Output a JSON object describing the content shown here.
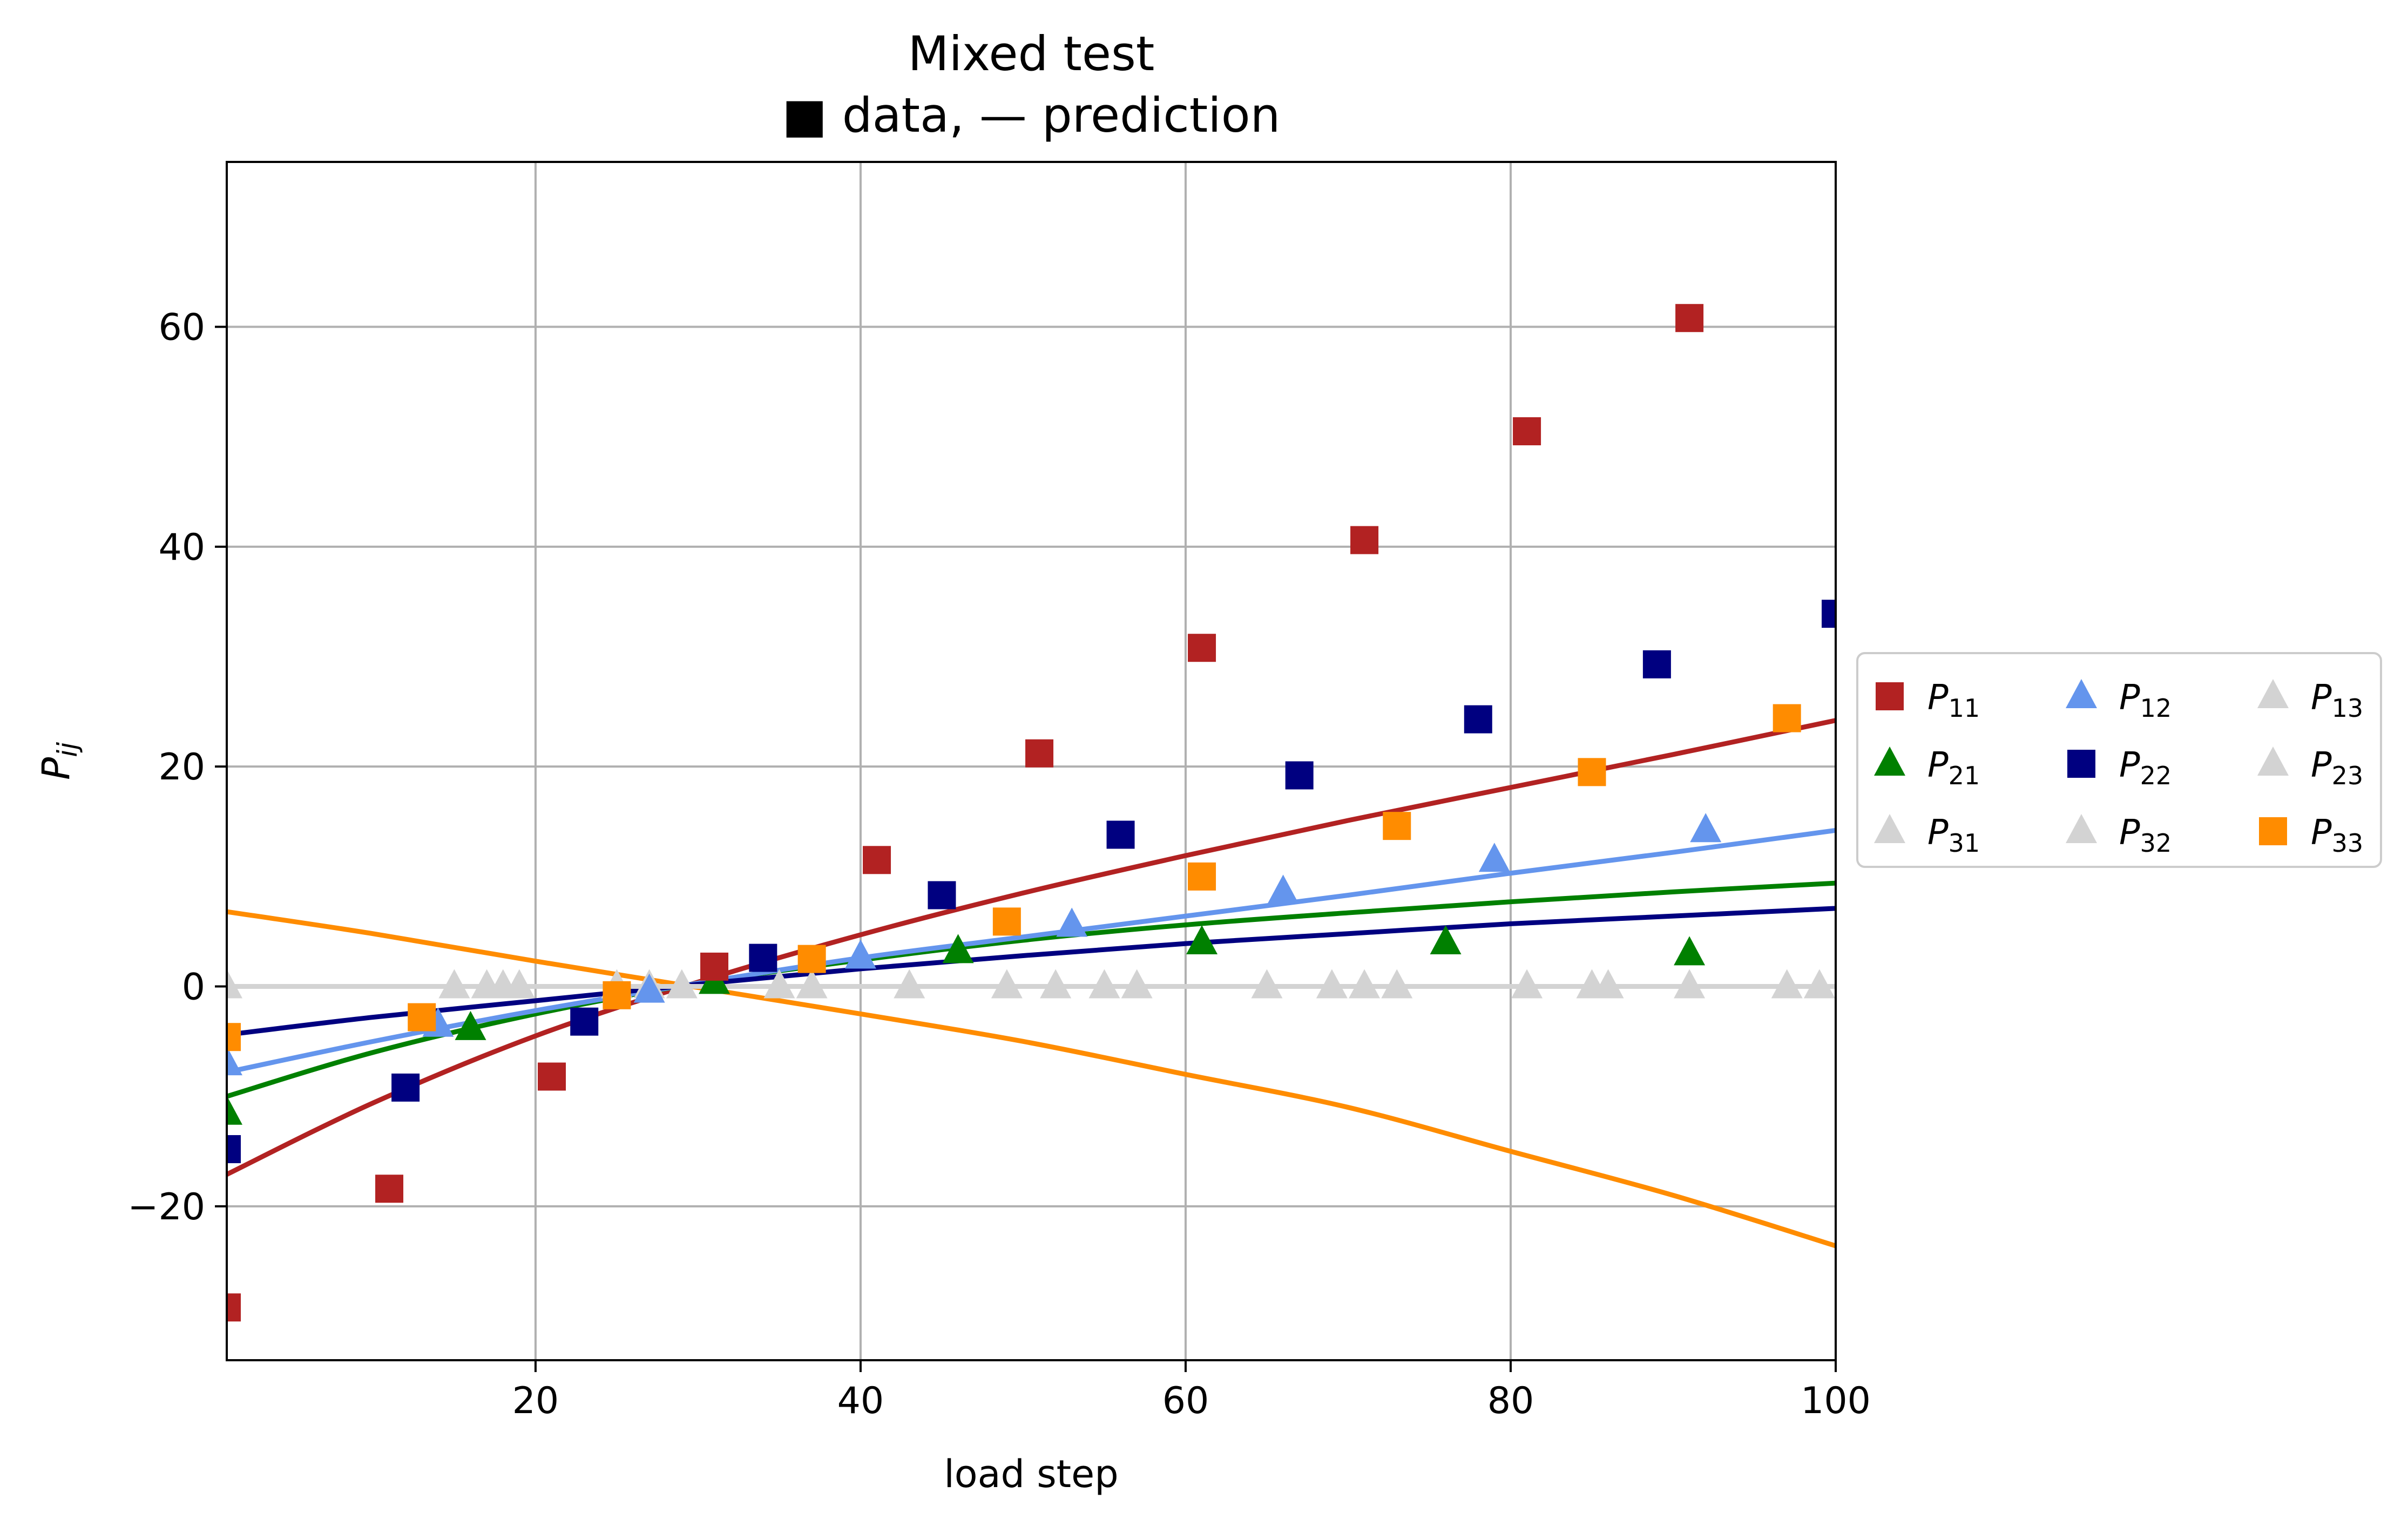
{
  "chart_data": {
    "type": "scatter",
    "title": "Mixed test",
    "subtitle": "■ data, — prediction",
    "xlabel": "load step",
    "ylabel": "P_ij",
    "xlim": [
      1,
      100
    ],
    "ylim": [
      -34,
      75
    ],
    "xticks": [
      20,
      40,
      60,
      80,
      100
    ],
    "yticks": [
      -20,
      0,
      20,
      40,
      60
    ],
    "xtick_labels": [
      "20",
      "40",
      "60",
      "80",
      "100"
    ],
    "ytick_labels": [
      "−20",
      "0",
      "20",
      "40",
      "60"
    ],
    "grid": true,
    "legend_placement": "right, outside",
    "legend": [
      {
        "name": "P",
        "sub": "11",
        "marker": "square",
        "color": "#b22222"
      },
      {
        "name": "P",
        "sub": "21",
        "marker": "triangle",
        "color": "#008000"
      },
      {
        "name": "P",
        "sub": "31",
        "marker": "triangle",
        "color": "#d3d3d3"
      },
      {
        "name": "P",
        "sub": "12",
        "marker": "triangle",
        "color": "#6495ed"
      },
      {
        "name": "P",
        "sub": "22",
        "marker": "square",
        "color": "#000080"
      },
      {
        "name": "P",
        "sub": "32",
        "marker": "triangle",
        "color": "#d3d3d3"
      },
      {
        "name": "P",
        "sub": "13",
        "marker": "triangle",
        "color": "#d3d3d3"
      },
      {
        "name": "P",
        "sub": "23",
        "marker": "triangle",
        "color": "#d3d3d3"
      },
      {
        "name": "P",
        "sub": "33",
        "marker": "square",
        "color": "#ff8c00"
      }
    ],
    "series": [
      {
        "id": "P11",
        "marker": "square",
        "color": "#b22222",
        "x": [
          1,
          11,
          21,
          31,
          41,
          51,
          61,
          71,
          81,
          91
        ],
        "y": [
          -29.2,
          -18.4,
          -8.2,
          1.8,
          11.5,
          21.2,
          30.8,
          40.6,
          50.5,
          60.8
        ]
      },
      {
        "id": "P21",
        "marker": "triangle",
        "color": "#008000",
        "x": [
          1,
          16,
          31,
          46,
          61,
          76,
          91
        ],
        "y": [
          -11.5,
          -3.8,
          0.4,
          3.2,
          4.0,
          4.0,
          3.0
        ]
      },
      {
        "id": "P12",
        "marker": "triangle",
        "color": "#6495ed",
        "x": [
          1,
          14,
          27,
          40,
          53,
          66,
          79,
          92
        ],
        "y": [
          -7.0,
          -3.5,
          -0.4,
          2.7,
          5.6,
          8.6,
          11.5,
          14.2
        ]
      },
      {
        "id": "P22",
        "marker": "square",
        "color": "#000080",
        "x": [
          1,
          12,
          23,
          34,
          45,
          56,
          67,
          78,
          89,
          100
        ],
        "y": [
          -14.8,
          -9.2,
          -3.2,
          2.6,
          8.3,
          13.8,
          19.2,
          24.3,
          29.3,
          33.9
        ]
      },
      {
        "id": "P33",
        "marker": "square",
        "color": "#ff8c00",
        "x": [
          1,
          13,
          25,
          37,
          49,
          61,
          73,
          85,
          97
        ],
        "y": [
          -4.6,
          -2.8,
          -0.8,
          2.5,
          5.9,
          10.0,
          14.6,
          19.5,
          24.4
        ]
      },
      {
        "id": "P13",
        "marker": "triangle",
        "color": "#d3d3d3",
        "x": [
          1,
          15,
          17,
          18,
          19,
          25,
          27,
          29,
          35,
          37,
          43,
          49,
          52,
          55,
          57,
          65,
          69,
          71,
          73,
          81,
          85,
          86,
          91,
          97,
          99
        ],
        "y": [
          0,
          0,
          0,
          0,
          0,
          0,
          0,
          0,
          0,
          0,
          0,
          0,
          0,
          0,
          0,
          0,
          0,
          0,
          0,
          0,
          0,
          0,
          0,
          0,
          0
        ]
      }
    ],
    "curves": [
      {
        "id": "P11-prediction",
        "color": "#b22222",
        "x": [
          1,
          10,
          20,
          30,
          40,
          50,
          60,
          70,
          80,
          90,
          100
        ],
        "y": [
          -17.1,
          -10.6,
          -4.5,
          0.4,
          4.7,
          8.5,
          11.9,
          15.1,
          18.1,
          21.1,
          24.2
        ]
      },
      {
        "id": "P21-prediction",
        "color": "#008000",
        "x": [
          1,
          10,
          20,
          30,
          40,
          50,
          60,
          70,
          80,
          90,
          100
        ],
        "y": [
          -10.0,
          -6.0,
          -2.5,
          0.3,
          2.4,
          4.2,
          5.6,
          6.7,
          7.7,
          8.6,
          9.4
        ]
      },
      {
        "id": "P12-prediction",
        "color": "#6495ed",
        "x": [
          1,
          10,
          20,
          30,
          40,
          50,
          60,
          70,
          80,
          90,
          100
        ],
        "y": [
          -7.8,
          -5.0,
          -2.2,
          0.3,
          2.6,
          4.5,
          6.4,
          8.3,
          10.3,
          12.2,
          14.2
        ]
      },
      {
        "id": "P22-prediction",
        "color": "#000080",
        "x": [
          1,
          10,
          20,
          30,
          40,
          50,
          60,
          70,
          80,
          90,
          100
        ],
        "y": [
          -4.4,
          -2.8,
          -1.3,
          0.2,
          1.6,
          2.8,
          3.9,
          4.8,
          5.7,
          6.4,
          7.1
        ]
      },
      {
        "id": "P33-prediction",
        "color": "#ff8c00",
        "x": [
          1,
          10,
          20,
          30,
          40,
          50,
          60,
          70,
          80,
          90,
          100
        ],
        "y": [
          6.8,
          4.8,
          2.3,
          -0.1,
          -2.5,
          -5.0,
          -8.0,
          -11.0,
          -15.0,
          -19.0,
          -23.6
        ]
      },
      {
        "id": "P13-prediction",
        "color": "#d3d3d3",
        "x": [
          1,
          100
        ],
        "y": [
          0,
          0
        ]
      }
    ]
  }
}
